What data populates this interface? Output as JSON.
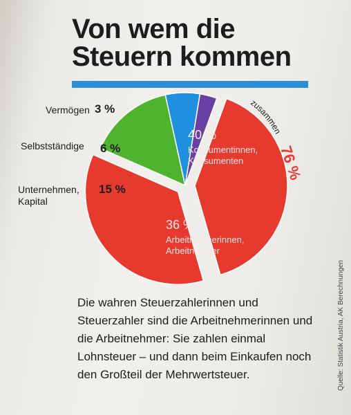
{
  "title_line1": "Von wem die",
  "title_line2": "Steuern kommen",
  "chart_data": {
    "type": "pie",
    "slices": [
      {
        "name": "Konsumentinnen, Konsumenten",
        "value": 40,
        "label": "40 %",
        "color": "#e63a2e"
      },
      {
        "name": "Arbeitnehmerinnen, Arbeitnehmer",
        "value": 36,
        "label": "36 %",
        "color": "#e63a2e"
      },
      {
        "name": "Unternehmen, Kapital",
        "value": 15,
        "label": "15 %",
        "color": "#4fb32f"
      },
      {
        "name": "Selbstständige",
        "value": 6,
        "label": "6 %",
        "color": "#1f8fdf"
      },
      {
        "name": "Vermögen",
        "value": 3,
        "label": "3 %",
        "color": "#6a3fa3"
      }
    ],
    "combined_annotation": {
      "text": "zusammen",
      "value": "76 %"
    }
  },
  "labels": {
    "vermoegen": "Vermögen",
    "selbststaendige": "Selbstständige",
    "unternehmen_line1": "Unternehmen,",
    "unternehmen_line2": "Kapital",
    "konsum_line1": "Konsumentinnen,",
    "konsum_line2": "Konsumenten",
    "arbeit_line1": "Arbeitnehmerinnen,",
    "arbeit_line2": "Arbeitnehmer"
  },
  "description": "Die wahren Steuerzahlerinnen und Steuerzahler sind die Arbeitnehmerinnen und die Arbeitnehmer: Sie zahlen einmal Lohnsteuer – und dann beim Einkaufen noch den Großteil der Mehrwertsteuer.",
  "source": "Quelle: Statistik Austria, AK Berechnungen"
}
